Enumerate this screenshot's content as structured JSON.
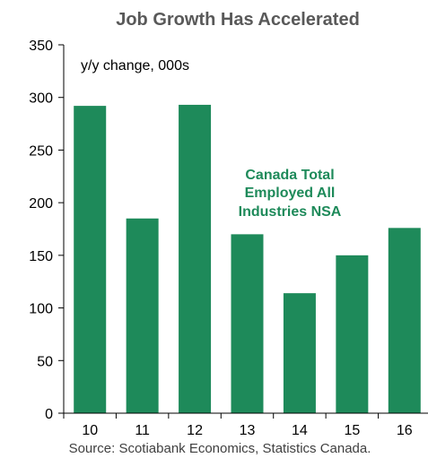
{
  "chart_data": {
    "type": "bar",
    "title": "Job Growth Has Accelerated",
    "unit_label": "y/y change, 000s",
    "categories": [
      "10",
      "11",
      "12",
      "13",
      "14",
      "15",
      "16"
    ],
    "values": [
      292,
      185,
      293,
      170,
      114,
      150,
      176
    ],
    "ylim": [
      0,
      350
    ],
    "yticks": [
      0,
      50,
      100,
      150,
      200,
      250,
      300,
      350
    ],
    "annotation": [
      "Canada Total",
      "Employed All",
      "Industries NSA"
    ],
    "source": "Source: Scotiabank Economics, Statistics Canada.",
    "bar_color": "#1e8a5a",
    "annotation_color": "#1e8a5a",
    "title_color": "#595959",
    "grid": false,
    "legend": "none"
  }
}
